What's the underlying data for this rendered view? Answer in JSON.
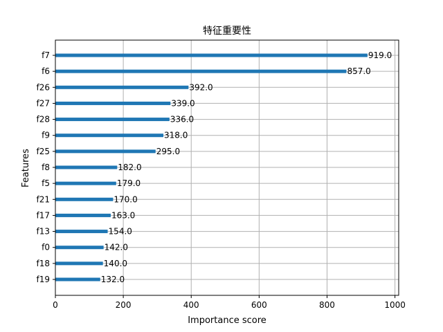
{
  "chart_data": {
    "type": "bar",
    "orientation": "horizontal",
    "title": "特征重要性",
    "xlabel": "Importance score",
    "ylabel": "Features",
    "categories": [
      "f7",
      "f6",
      "f26",
      "f27",
      "f28",
      "f9",
      "f25",
      "f8",
      "f5",
      "f21",
      "f17",
      "f13",
      "f0",
      "f18",
      "f19"
    ],
    "values": [
      919.0,
      857.0,
      392.0,
      339.0,
      336.0,
      318.0,
      295.0,
      182.0,
      179.0,
      170.0,
      163.0,
      154.0,
      142.0,
      140.0,
      132.0
    ],
    "data_labels": [
      "919.0",
      "857.0",
      "392.0",
      "339.0",
      "336.0",
      "318.0",
      "295.0",
      "182.0",
      "179.0",
      "170.0",
      "163.0",
      "154.0",
      "142.0",
      "140.0",
      "132.0"
    ],
    "xlim": [
      0,
      1011
    ],
    "xticks": [
      0,
      200,
      400,
      600,
      800,
      1000
    ],
    "xtick_labels": [
      "0",
      "200",
      "400",
      "600",
      "800",
      "1000"
    ],
    "grid": true,
    "bar_color": "#1f77b4"
  }
}
